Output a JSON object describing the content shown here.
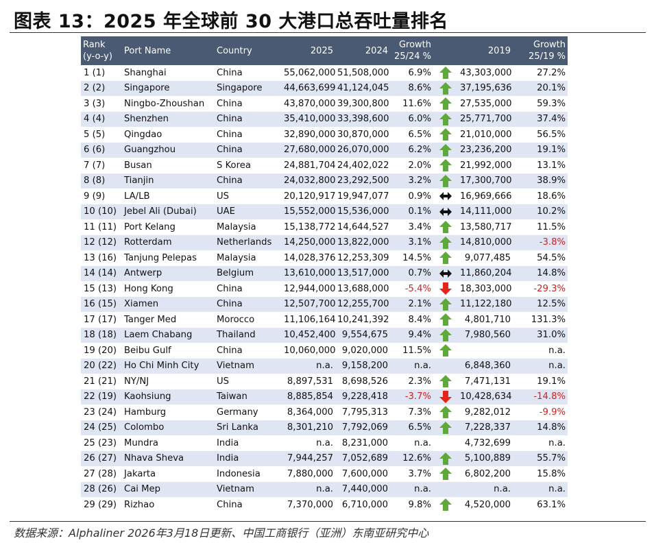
{
  "figure_title": "图表 13：2025 年全球前 30 大港口总吞吐量排名",
  "source_note": "数据来源：Alphaliner 2026年3月18日更新、中国工商银行（亚洲）东南亚研究中心",
  "colors": {
    "header_bg": "#4a5a72",
    "row_stripe": "#dfe5f2",
    "up_arrow": "#5fa83c",
    "down_arrow": "#e5231b",
    "flat_arrow": "#111111",
    "negative_text": "#d42020"
  },
  "table": {
    "headers": {
      "rank": "Rank\n(y-o-y)",
      "port": "Port Name",
      "country": "Country",
      "y2025": "2025",
      "y2024": "2024",
      "growth_25_24": "Growth\n25/24 %",
      "y2019": "2019",
      "growth_25_19": "Growth\n25/19 %"
    },
    "rows": [
      {
        "rank": "1 (1)",
        "port": "Shanghai",
        "country": "China",
        "v2025": "55,062,000",
        "v2024": "51,508,000",
        "g2524": "6.9%",
        "arrow": "up-arrow-icon",
        "v2019": "43,303,000",
        "g2519": "27.2%"
      },
      {
        "rank": "2 (2)",
        "port": "Singapore",
        "country": "Singapore",
        "v2025": "44,663,699",
        "v2024": "41,124,045",
        "g2524": "8.6%",
        "arrow": "up-arrow-icon",
        "v2019": "37,195,636",
        "g2519": "20.1%"
      },
      {
        "rank": "3 (3)",
        "port": "Ningbo-Zhoushan",
        "country": "China",
        "v2025": "43,870,000",
        "v2024": "39,300,800",
        "g2524": "11.6%",
        "arrow": "up-arrow-icon",
        "v2019": "27,535,000",
        "g2519": "59.3%"
      },
      {
        "rank": "4 (4)",
        "port": "Shenzhen",
        "country": "China",
        "v2025": "35,410,000",
        "v2024": "33,398,600",
        "g2524": "6.0%",
        "arrow": "up-arrow-icon",
        "v2019": "25,771,700",
        "g2519": "37.4%"
      },
      {
        "rank": "5 (5)",
        "port": "Qingdao",
        "country": "China",
        "v2025": "32,890,000",
        "v2024": "30,870,000",
        "g2524": "6.5%",
        "arrow": "up-arrow-icon",
        "v2019": "21,010,000",
        "g2519": "56.5%"
      },
      {
        "rank": "6 (6)",
        "port": "Guangzhou",
        "country": "China",
        "v2025": "27,680,000",
        "v2024": "26,070,000",
        "g2524": "6.2%",
        "arrow": "up-arrow-icon",
        "v2019": "23,236,200",
        "g2519": "19.1%"
      },
      {
        "rank": "7 (7)",
        "port": "Busan",
        "country": "S Korea",
        "v2025": "24,881,704",
        "v2024": "24,402,022",
        "g2524": "2.0%",
        "arrow": "up-arrow-icon",
        "v2019": "21,992,000",
        "g2519": "13.1%"
      },
      {
        "rank": "8 (8)",
        "port": "Tianjin",
        "country": "China",
        "v2025": "24,032,800",
        "v2024": "23,292,500",
        "g2524": "3.2%",
        "arrow": "up-arrow-icon",
        "v2019": "17,300,700",
        "g2519": "38.9%"
      },
      {
        "rank": "9 (9)",
        "port": "LA/LB",
        "country": "US",
        "v2025": "20,120,917",
        "v2024": "19,947,077",
        "g2524": "0.9%",
        "arrow": "flat-arrow-icon",
        "v2019": "16,969,666",
        "g2519": "18.6%"
      },
      {
        "rank": "10 (10)",
        "port": "Jebel Ali (Dubai)",
        "country": "UAE",
        "v2025": "15,552,000",
        "v2024": "15,536,000",
        "g2524": "0.1%",
        "arrow": "flat-arrow-icon",
        "v2019": "14,111,000",
        "g2519": "10.2%"
      },
      {
        "rank": "11 (11)",
        "port": "Port Kelang",
        "country": "Malaysia",
        "v2025": "15,138,772",
        "v2024": "14,644,527",
        "g2524": "3.4%",
        "arrow": "up-arrow-icon",
        "v2019": "13,580,717",
        "g2519": "11.5%"
      },
      {
        "rank": "12 (12)",
        "port": "Rotterdam",
        "country": "Netherlands",
        "v2025": "14,250,000",
        "v2024": "13,822,000",
        "g2524": "3.1%",
        "arrow": "up-arrow-icon",
        "v2019": "14,810,000",
        "g2519": "-3.8%"
      },
      {
        "rank": "13 (16)",
        "port": "Tanjung Pelepas",
        "country": "Malaysia",
        "v2025": "14,028,376",
        "v2024": "12,253,309",
        "g2524": "14.5%",
        "arrow": "up-arrow-icon",
        "v2019": "9,077,485",
        "g2519": "54.5%"
      },
      {
        "rank": "14 (14)",
        "port": "Antwerp",
        "country": "Belgium",
        "v2025": "13,610,000",
        "v2024": "13,517,000",
        "g2524": "0.7%",
        "arrow": "flat-arrow-icon",
        "v2019": "11,860,204",
        "g2519": "14.8%"
      },
      {
        "rank": "15 (13)",
        "port": "Hong Kong",
        "country": "China",
        "v2025": "12,944,000",
        "v2024": "13,688,000",
        "g2524": "-5.4%",
        "arrow": "down-arrow-icon",
        "v2019": "18,303,000",
        "g2519": "-29.3%"
      },
      {
        "rank": "16 (15)",
        "port": "Xiamen",
        "country": "China",
        "v2025": "12,507,700",
        "v2024": "12,255,700",
        "g2524": "2.1%",
        "arrow": "up-arrow-icon",
        "v2019": "11,122,180",
        "g2519": "12.5%"
      },
      {
        "rank": "17 (17)",
        "port": "Tanger Med",
        "country": "Morocco",
        "v2025": "11,106,164",
        "v2024": "10,241,392",
        "g2524": "8.4%",
        "arrow": "up-arrow-icon",
        "v2019": "4,801,710",
        "g2519": "131.3%"
      },
      {
        "rank": "18 (18)",
        "port": "Laem Chabang",
        "country": "Thailand",
        "v2025": "10,452,400",
        "v2024": "9,554,675",
        "g2524": "9.4%",
        "arrow": "up-arrow-icon",
        "v2019": "7,980,560",
        "g2519": "31.0%"
      },
      {
        "rank": "19 (20)",
        "port": "Beibu Gulf",
        "country": "China",
        "v2025": "10,060,000",
        "v2024": "9,020,000",
        "g2524": "11.5%",
        "arrow": "up-arrow-icon",
        "v2019": "",
        "g2519": "n.a."
      },
      {
        "rank": "20 (22)",
        "port": "Ho Chi Minh City",
        "country": "Vietnam",
        "v2025": "n.a.",
        "v2024": "9,158,200",
        "g2524": "n.a.",
        "arrow": "",
        "v2019": "6,848,360",
        "g2519": "n.a."
      },
      {
        "rank": "21 (21)",
        "port": "NY/NJ",
        "country": "US",
        "v2025": "8,897,531",
        "v2024": "8,698,526",
        "g2524": "2.3%",
        "arrow": "up-arrow-icon",
        "v2019": "7,471,131",
        "g2519": "19.1%"
      },
      {
        "rank": "22 (19)",
        "port": "Kaohsiung",
        "country": "Taiwan",
        "v2025": "8,885,854",
        "v2024": "9,228,418",
        "g2524": "-3.7%",
        "arrow": "down-arrow-icon",
        "v2019": "10,428,634",
        "g2519": "-14.8%"
      },
      {
        "rank": "23 (24)",
        "port": "Hamburg",
        "country": "Germany",
        "v2025": "8,364,000",
        "v2024": "7,795,313",
        "g2524": "7.3%",
        "arrow": "up-arrow-icon",
        "v2019": "9,282,012",
        "g2519": "-9.9%"
      },
      {
        "rank": "24 (25)",
        "port": "Colombo",
        "country": "Sri Lanka",
        "v2025": "8,301,210",
        "v2024": "7,792,069",
        "g2524": "6.5%",
        "arrow": "up-arrow-icon",
        "v2019": "7,228,337",
        "g2519": "14.8%"
      },
      {
        "rank": "25 (23)",
        "port": "Mundra",
        "country": "India",
        "v2025": "n.a.",
        "v2024": "8,231,000",
        "g2524": "n.a.",
        "arrow": "",
        "v2019": "4,732,699",
        "g2519": "n.a."
      },
      {
        "rank": "26 (27)",
        "port": "Nhava Sheva",
        "country": "India",
        "v2025": "7,944,257",
        "v2024": "7,052,689",
        "g2524": "12.6%",
        "arrow": "up-arrow-icon",
        "v2019": "5,100,889",
        "g2519": "55.7%"
      },
      {
        "rank": "27 (28)",
        "port": "Jakarta",
        "country": "Indonesia",
        "v2025": "7,880,000",
        "v2024": "7,600,000",
        "g2524": "3.7%",
        "arrow": "up-arrow-icon",
        "v2019": "6,802,200",
        "g2519": "15.8%"
      },
      {
        "rank": "28 (26)",
        "port": "Cai Mep",
        "country": "Vietnam",
        "v2025": "n.a.",
        "v2024": "7,440,000",
        "g2524": "n.a.",
        "arrow": "",
        "v2019": "n.a.",
        "g2519": "n.a."
      },
      {
        "rank": "29 (29)",
        "port": "Rizhao",
        "country": "China",
        "v2025": "7,370,000",
        "v2024": "6,710,000",
        "g2524": "9.8%",
        "arrow": "up-arrow-icon",
        "v2019": "4,520,000",
        "g2519": "63.1%"
      }
    ]
  }
}
